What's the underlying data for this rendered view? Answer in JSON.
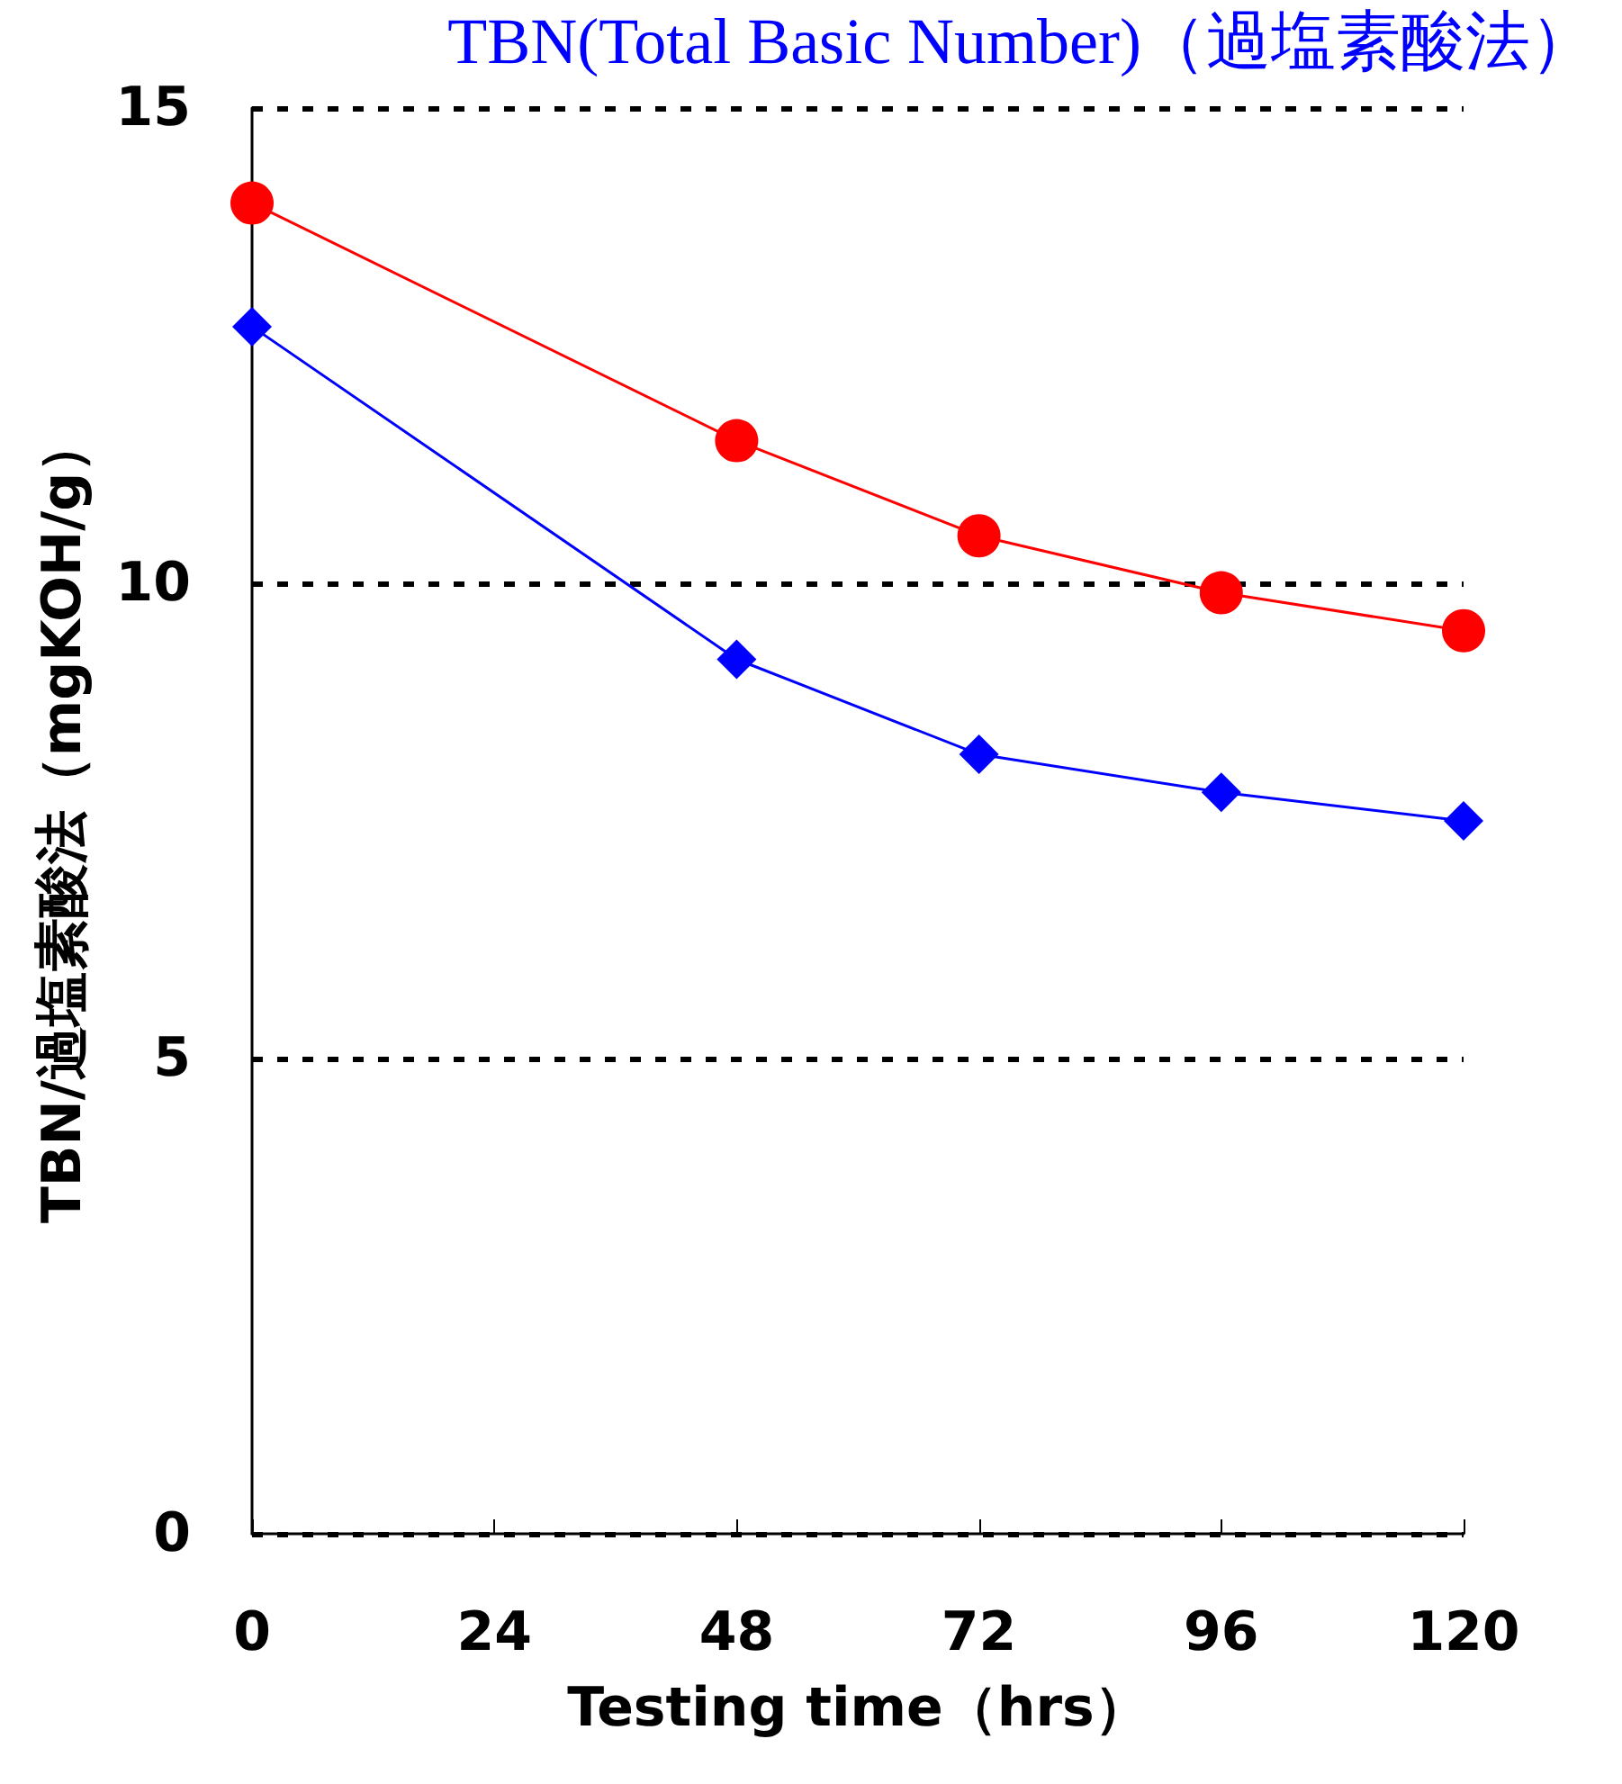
{
  "chart_data": {
    "type": "line",
    "title": "TBN(Total Basic Number)（過塩素酸法）",
    "xlabel": "Testing time（hrs）",
    "ylabel": "TBN/過塩素酸法（mgKOH/g）",
    "x": [
      0,
      48,
      72,
      96,
      120
    ],
    "series": [
      {
        "color": "#0000ff",
        "marker": "diamond",
        "values": [
          12.7,
          9.2,
          8.2,
          7.8,
          7.5
        ]
      },
      {
        "color": "#ff0000",
        "marker": "circle",
        "values": [
          14.0,
          11.5,
          10.5,
          9.9,
          9.5
        ]
      }
    ],
    "xlim": [
      0,
      120
    ],
    "xticks": [
      0,
      24,
      48,
      72,
      96,
      120
    ],
    "ylim": [
      0,
      15
    ],
    "yticks": [
      0,
      5,
      10,
      15
    ],
    "grid": "y",
    "line_style": "solid"
  }
}
